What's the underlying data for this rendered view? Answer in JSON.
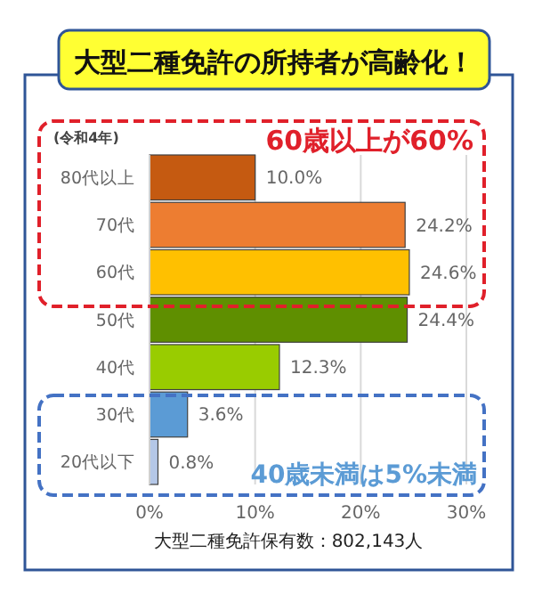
{
  "chart_data": {
    "type": "bar",
    "orientation": "horizontal",
    "title": "大型二種免許の所持者が高齢化！",
    "categories": [
      "80代以上",
      "70代",
      "60代",
      "50代",
      "40代",
      "30代",
      "20代以下"
    ],
    "values": [
      10.0,
      24.2,
      24.6,
      24.4,
      12.3,
      3.6,
      0.8
    ],
    "colors": [
      "#c55a11",
      "#ed7d31",
      "#ffc000",
      "#5f8f00",
      "#99cc00",
      "#5b9bd5",
      "#b4c7e7"
    ],
    "value_labels": [
      "10.0%",
      "24.2%",
      "24.6%",
      "24.4%",
      "12.3%",
      "3.6%",
      "0.8%"
    ],
    "xlim": [
      0,
      30
    ],
    "xticks": [
      {
        "value": 0,
        "label": "0%"
      },
      {
        "value": 10,
        "label": "10%"
      },
      {
        "value": 20,
        "label": "20%"
      },
      {
        "value": 30,
        "label": "30%"
      }
    ],
    "grid": "x",
    "annotations": [
      "(令和4年)",
      "60歳以上が60%",
      "40歳未満は5%未満",
      "大型二種免許保有数：802,143人"
    ]
  }
}
